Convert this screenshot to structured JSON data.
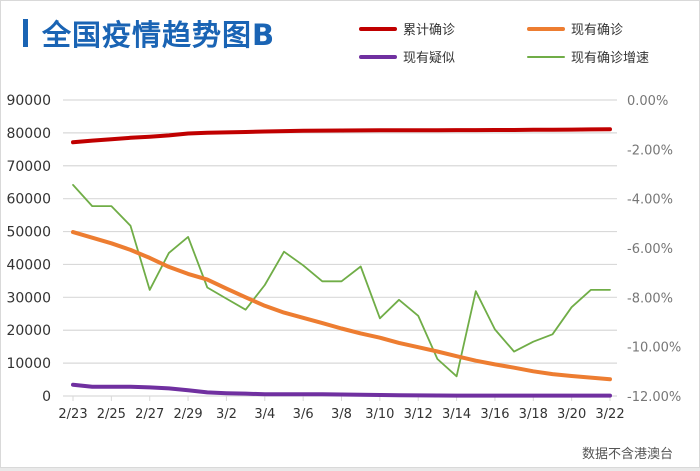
{
  "title": "全国疫情趋势图B",
  "footnote": "数据不含港澳台",
  "legend": [
    {
      "label": "累计确诊",
      "color": "#c00000"
    },
    {
      "label": "现有确诊",
      "color": "#ed7d31"
    },
    {
      "label": "现有疑似",
      "color": "#7030a0"
    },
    {
      "label": "现有确诊增速",
      "color": "#70ad47"
    }
  ],
  "chart_data": {
    "type": "line",
    "title": "全国疫情趋势图B",
    "xlabel": "",
    "ylabel": "",
    "y2label": "",
    "x": [
      "2/23",
      "2/24",
      "2/25",
      "2/26",
      "2/27",
      "2/28",
      "2/29",
      "3/1",
      "3/2",
      "3/3",
      "3/4",
      "3/5",
      "3/6",
      "3/7",
      "3/8",
      "3/9",
      "3/10",
      "3/11",
      "3/12",
      "3/13",
      "3/14",
      "3/15",
      "3/16",
      "3/17",
      "3/18",
      "3/19",
      "3/20",
      "3/21",
      "3/22"
    ],
    "x_tick_labels": [
      "2/23",
      "2/25",
      "2/27",
      "2/29",
      "3/2",
      "3/4",
      "3/6",
      "3/8",
      "3/10",
      "3/12",
      "3/14",
      "3/16",
      "3/18",
      "3/20",
      "3/22"
    ],
    "ylim": [
      0,
      90000
    ],
    "y_ticks": [
      0,
      10000,
      20000,
      30000,
      40000,
      50000,
      60000,
      70000,
      80000,
      90000
    ],
    "y2lim": [
      -12,
      0
    ],
    "y2_ticks": [
      "0.00%",
      "-2.00%",
      "-4.00%",
      "-6.00%",
      "-8.00%",
      "-10.00%",
      "-12.00%"
    ],
    "grid": true,
    "legend_position": "top-right",
    "series": [
      {
        "name": "累计确诊",
        "axis": "left",
        "color": "#c00000",
        "values": [
          77150,
          77660,
          78060,
          78500,
          78820,
          79250,
          79820,
          80030,
          80150,
          80270,
          80410,
          80550,
          80650,
          80700,
          80740,
          80760,
          80780,
          80790,
          80810,
          80820,
          80840,
          80850,
          80880,
          80890,
          80930,
          80970,
          81010,
          81050,
          81090
        ]
      },
      {
        "name": "现有确诊",
        "axis": "left",
        "color": "#ed7d31",
        "values": [
          49820,
          48130,
          46420,
          44430,
          41990,
          39260,
          37130,
          35380,
          32650,
          30000,
          27430,
          25350,
          23780,
          22180,
          20530,
          19020,
          17720,
          16150,
          14830,
          13530,
          12090,
          10730,
          9620,
          8590,
          7520,
          6660,
          6070,
          5600,
          5100
        ]
      },
      {
        "name": "现有疑似",
        "axis": "left",
        "color": "#7030a0",
        "values": [
          3430,
          2820,
          2820,
          2820,
          2610,
          2310,
          1720,
          1100,
          850,
          720,
          520,
          520,
          530,
          520,
          450,
          350,
          300,
          250,
          180,
          140,
          120,
          110,
          110,
          110,
          110,
          110,
          120,
          110,
          130
        ]
      },
      {
        "name": "现有确诊增速",
        "axis": "right",
        "unit": "%",
        "color": "#70ad47",
        "values": [
          -3.44,
          -4.3,
          -4.3,
          -5.1,
          -7.7,
          -6.2,
          -5.55,
          -7.6,
          -8.05,
          -8.5,
          -7.5,
          -6.15,
          -6.7,
          -7.35,
          -7.35,
          -6.75,
          -8.85,
          -8.1,
          -8.75,
          -10.5,
          -11.2,
          -7.75,
          -9.3,
          -10.2,
          -9.8,
          -9.5,
          -8.4,
          -7.7,
          -7.7
        ]
      }
    ]
  }
}
